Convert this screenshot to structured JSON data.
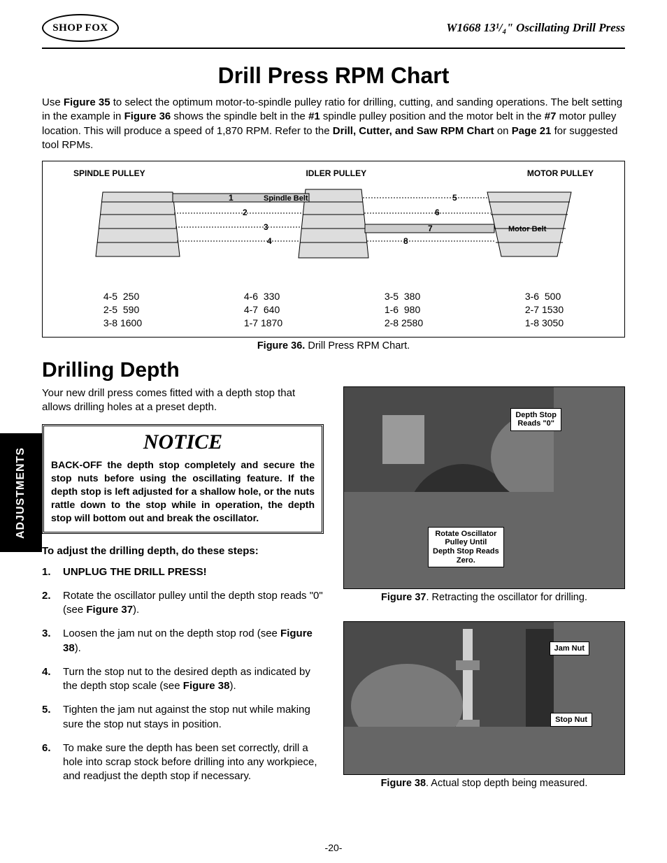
{
  "header": {
    "logo_text": "SHOP FOX",
    "product": "W1668 13¹/₄\" Oscillating Drill Press"
  },
  "title1": "Drill Press RPM Chart",
  "intro": {
    "line1_a": "Use ",
    "line1_b": "Figure 35",
    "line1_c": " to select the optimum motor-to-spindle pulley ratio for drilling, cutting, and sanding operations. The belt setting in the example in ",
    "line1_d": "Figure 36",
    "line1_e": " shows the spindle belt in the ",
    "line1_f": "#1",
    "line1_g": " spindle pulley position and the motor belt in the ",
    "line1_h": "#7",
    "line1_i": " motor pulley location. This will produce a speed of 1,870 RPM. Refer to the ",
    "line1_j": "Drill, Cutter, and Saw RPM Chart",
    "line1_k": " on ",
    "line1_l": "Page 21",
    "line1_m": " for suggested tool RPMs."
  },
  "chart": {
    "labels": {
      "spindle": "SPINDLE PULLEY",
      "idler": "IDLER PULLEY",
      "motor": "MOTOR PULLEY",
      "spindle_belt": "Spindle Belt",
      "motor_belt": "Motor Belt"
    },
    "left_steps": [
      "1",
      "2",
      "3",
      "4"
    ],
    "right_steps": [
      "5",
      "6",
      "7",
      "8"
    ],
    "rpm_columns": [
      [
        "4-5  250",
        "2-5  590",
        "3-8 1600"
      ],
      [
        "4-6  330",
        "4-7  640",
        "1-7 1870"
      ],
      [
        "3-5  380",
        "1-6  980",
        "2-8 2580"
      ],
      [
        "3-6  500",
        "2-7 1530",
        "1-8 3050"
      ]
    ],
    "caption_bold": "Figure 36.",
    "caption_rest": "  Drill Press RPM Chart."
  },
  "title2": "Drilling Depth",
  "depth_intro": "Your new drill press comes fitted with a depth stop that allows drilling holes at a preset depth.",
  "notice": {
    "title": "NOTICE",
    "body": "BACK-OFF the depth stop completely and secure the stop nuts before using the oscillating feature. If the depth stop is left adjusted for a shallow hole, or the nuts rattle down to the stop while in operation, the depth stop will bottom out and break the oscillator."
  },
  "steps_intro": "To adjust the drilling depth, do these steps:",
  "steps": [
    {
      "n": "1.",
      "html": "<b>UNPLUG THE DRILL PRESS!</b>"
    },
    {
      "n": "2.",
      "html": "Rotate the oscillator pulley until the depth stop reads \"0\" (see <b>Figure 37</b>)."
    },
    {
      "n": "3.",
      "html": "Loosen the jam nut on the depth stop rod (see <b>Figure 38</b>)."
    },
    {
      "n": "4.",
      "html": "Turn the stop nut to the desired depth as indicated by the depth stop scale (see <b>Figure 38</b>)."
    },
    {
      "n": "5.",
      "html": "Tighten the jam nut against the stop nut while making sure the stop nut stays in position."
    },
    {
      "n": "6.",
      "html": "To make sure the depth has been set correctly, drill a hole into scrap stock before drilling into any workpiece, and readjust the depth stop if necessary."
    }
  ],
  "fig37": {
    "callout1": "Depth Stop\nReads \"0\"",
    "callout2": "Rotate Oscillator\nPulley Until\nDepth Stop Reads\nZero.",
    "caption_b": "Figure 37",
    "caption_r": ". Retracting the oscillator for drilling."
  },
  "fig38": {
    "callout1": "Jam Nut",
    "callout2": "Stop Nut",
    "caption_b": "Figure 38",
    "caption_r": ". Actual stop depth being measured."
  },
  "side_tab": "ADJUSTMENTS",
  "page_num": "-20-",
  "colors": {
    "text": "#000000",
    "bg": "#ffffff",
    "grey_fill": "#cccccc",
    "photo_bg": "#555555"
  }
}
